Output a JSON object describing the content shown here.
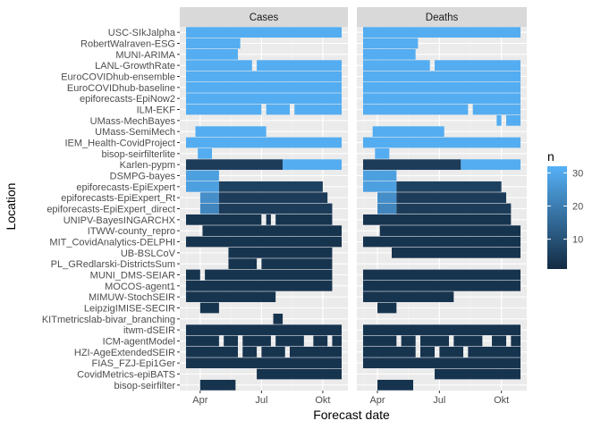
{
  "chart_data": {
    "type": "heatmap",
    "xlabel": "Forecast date",
    "ylabel": "Location",
    "x_ticks": [
      "Apr",
      "Jul",
      "Okt"
    ],
    "x_range_weeks": [
      -3,
      30
    ],
    "x_tick_weeks": [
      0,
      13,
      26
    ],
    "panels": [
      "Cases",
      "Deaths"
    ],
    "legend": {
      "title": "n",
      "ticks": [
        10,
        20,
        30
      ],
      "range": [
        1,
        32
      ],
      "low_color": "#132B43",
      "high_color": "#56B1F7",
      "position": "right"
    },
    "grid": true,
    "categories": [
      "USC-SIkJalpha",
      "RobertWalraven-ESG",
      "MUNI-ARIMA",
      "LANL-GrowthRate",
      "EuroCOVIDhub-ensemble",
      "EuroCOVIDhub-baseline",
      "epiforecasts-EpiNow2",
      "ILM-EKF",
      "UMass-MechBayes",
      "UMass-SemiMech",
      "IEM_Health-CovidProject",
      "bisop-seirfilterlite",
      "Karlen-pypm",
      "DSMPG-bayes",
      "epiforecasts-EpiExpert",
      "epiforecasts-EpiExpert_Rt",
      "epiforecasts-EpiExpert_direct",
      "UNIPV-BayesINGARCHX",
      "ITWW-county_repro",
      "MIT_CovidAnalytics-DELPHI",
      "UB-BSLCoV",
      "PL_GRedlarski-DistrictsSum",
      "MUNI_DMS-SEIAR",
      "MOCOS-agent1",
      "MIMUW-StochSEIR",
      "LeipzigIMISE-SECIR",
      "KITmetricslab-bivar_branching",
      "itwm-dSEIR",
      "ICM-agentModel",
      "HZI-AgeExtendedSEIR",
      "FIAS_FZJ-Epi1Ger",
      "CovidMetrics-epiBATS",
      "bisop-seirfilter"
    ],
    "rows": {
      "Cases": [
        {
          "start": -3,
          "end": 30,
          "n": 31,
          "gaps": []
        },
        {
          "start": -3,
          "end": 30,
          "n": 31,
          "gaps": [
            [
              8.5,
              30
            ]
          ]
        },
        {
          "start": -3,
          "end": 30,
          "n": 31,
          "gaps": [
            [
              8,
              30
            ]
          ]
        },
        {
          "start": -3,
          "end": 30,
          "n": 31,
          "gaps": [
            [
              11,
              12
            ]
          ]
        },
        {
          "start": -3,
          "end": 30,
          "n": 31,
          "gaps": []
        },
        {
          "start": -3,
          "end": 30,
          "n": 31,
          "gaps": []
        },
        {
          "start": -3,
          "end": 30,
          "n": 31,
          "gaps": []
        },
        {
          "start": -3,
          "end": 30,
          "n": 31,
          "gaps": [
            [
              13,
              14
            ],
            [
              19,
              20
            ]
          ]
        },
        {
          "start": -3,
          "end": 30,
          "n": 31,
          "gaps": [
            [
              -3,
              30
            ]
          ]
        },
        {
          "start": -1,
          "end": 14,
          "n": 31,
          "gaps": []
        },
        {
          "start": -3,
          "end": 30,
          "n": 31,
          "gaps": []
        },
        {
          "start": -0.5,
          "end": 2.5,
          "n": 31,
          "gaps": []
        },
        {
          "start": -3,
          "end": 30,
          "n": 5,
          "gaps": [],
          "tail": {
            "from": 17.5,
            "n": 31
          }
        },
        {
          "start": -3,
          "end": 4,
          "n": 28,
          "gaps": []
        },
        {
          "start": -3,
          "end": 26,
          "n": 6,
          "gaps": [],
          "lead": {
            "to": 4,
            "n": 28
          }
        },
        {
          "start": 0,
          "end": 27,
          "n": 5,
          "gaps": [],
          "lead": {
            "to": 4,
            "n": 24
          }
        },
        {
          "start": 0,
          "end": 28,
          "n": 5,
          "gaps": [],
          "lead": {
            "to": 4,
            "n": 22
          }
        },
        {
          "start": -3,
          "end": 28,
          "n": 3,
          "gaps": [
            [
              13,
              14
            ],
            [
              15,
              16
            ]
          ]
        },
        {
          "start": -3,
          "end": 30,
          "n": 3,
          "gaps": [
            [
              -3,
              0.5
            ]
          ]
        },
        {
          "start": -3,
          "end": 30,
          "n": 3,
          "gaps": []
        },
        {
          "start": -3,
          "end": 28,
          "n": 3,
          "gaps": [
            [
              -3,
              6
            ]
          ]
        },
        {
          "start": 6,
          "end": 28,
          "n": 3,
          "gaps": [
            [
              12,
              13
            ]
          ]
        },
        {
          "start": -3,
          "end": 28,
          "n": 3,
          "gaps": [
            [
              0,
              1
            ]
          ]
        },
        {
          "start": -3,
          "end": 28,
          "n": 3,
          "gaps": []
        },
        {
          "start": -3,
          "end": 30,
          "n": 3,
          "gaps": [
            [
              16,
              30
            ]
          ]
        },
        {
          "start": 0,
          "end": 4,
          "n": 3,
          "gaps": []
        },
        {
          "start": 15.5,
          "end": 17.5,
          "n": 3,
          "gaps": []
        },
        {
          "start": -3,
          "end": 30,
          "n": 3,
          "gaps": []
        },
        {
          "start": -3,
          "end": 30,
          "n": 3,
          "gaps": [
            [
              4,
              5
            ],
            [
              8,
              9
            ],
            [
              15,
              16
            ],
            [
              22,
              24
            ],
            [
              27,
              28
            ]
          ]
        },
        {
          "start": -3,
          "end": 30,
          "n": 3,
          "gaps": [
            [
              8,
              9
            ],
            [
              12,
              13
            ],
            [
              18,
              19
            ]
          ]
        },
        {
          "start": -3,
          "end": 30,
          "n": 3,
          "gaps": []
        },
        {
          "start": 12,
          "end": 30,
          "n": 3,
          "gaps": []
        },
        {
          "start": 0,
          "end": 7.5,
          "n": 3,
          "gaps": []
        }
      ],
      "Deaths": [
        {
          "start": -3,
          "end": 30,
          "n": 31,
          "gaps": []
        },
        {
          "start": -3,
          "end": 30,
          "n": 31,
          "gaps": [
            [
              8.5,
              30
            ]
          ]
        },
        {
          "start": -3,
          "end": 30,
          "n": 31,
          "gaps": [
            [
              8,
              30
            ]
          ]
        },
        {
          "start": -3,
          "end": 30,
          "n": 31,
          "gaps": [
            [
              11,
              12
            ]
          ]
        },
        {
          "start": -3,
          "end": 30,
          "n": 31,
          "gaps": []
        },
        {
          "start": -3,
          "end": 30,
          "n": 31,
          "gaps": []
        },
        {
          "start": -3,
          "end": 30,
          "n": 31,
          "gaps": []
        },
        {
          "start": -3,
          "end": 30,
          "n": 31,
          "gaps": [
            [
              19,
              20
            ]
          ]
        },
        {
          "start": -3,
          "end": 30,
          "n": 31,
          "gaps": [
            [
              -3,
              25
            ],
            [
              26,
              27
            ]
          ]
        },
        {
          "start": -1,
          "end": 14,
          "n": 31,
          "gaps": []
        },
        {
          "start": -3,
          "end": 30,
          "n": 31,
          "gaps": []
        },
        {
          "start": -0.5,
          "end": 2.5,
          "n": 31,
          "gaps": []
        },
        {
          "start": -3,
          "end": 30,
          "n": 5,
          "gaps": [],
          "tail": {
            "from": 17.5,
            "n": 31
          }
        },
        {
          "start": -3,
          "end": 4,
          "n": 28,
          "gaps": []
        },
        {
          "start": -3,
          "end": 26,
          "n": 6,
          "gaps": [],
          "lead": {
            "to": 4,
            "n": 28
          }
        },
        {
          "start": 0,
          "end": 27,
          "n": 5,
          "gaps": [],
          "lead": {
            "to": 4,
            "n": 24
          }
        },
        {
          "start": 0,
          "end": 28,
          "n": 5,
          "gaps": [],
          "lead": {
            "to": 4,
            "n": 22
          }
        },
        {
          "start": -3,
          "end": 28,
          "n": 3,
          "gaps": []
        },
        {
          "start": -3,
          "end": 30,
          "n": 3,
          "gaps": [
            [
              -3,
              0.5
            ]
          ]
        },
        {
          "start": -3,
          "end": 30,
          "n": 3,
          "gaps": []
        },
        {
          "start": 3,
          "end": 30,
          "n": 3,
          "gaps": []
        },
        {
          "start": -3,
          "end": 30,
          "n": 3,
          "gaps": [
            [
              -3,
              30
            ]
          ]
        },
        {
          "start": -3,
          "end": 30,
          "n": 3,
          "gaps": []
        },
        {
          "start": -3,
          "end": 30,
          "n": 3,
          "gaps": []
        },
        {
          "start": -3,
          "end": 30,
          "n": 3,
          "gaps": [
            [
              16,
              30
            ]
          ]
        },
        {
          "start": 0,
          "end": 4,
          "n": 3,
          "gaps": []
        },
        {
          "start": -3,
          "end": 30,
          "n": 3,
          "gaps": [
            [
              -3,
              30
            ]
          ]
        },
        {
          "start": -3,
          "end": 30,
          "n": 3,
          "gaps": []
        },
        {
          "start": -3,
          "end": 30,
          "n": 3,
          "gaps": [
            [
              4,
              5
            ],
            [
              8,
              9
            ],
            [
              15,
              16
            ],
            [
              22,
              24
            ],
            [
              27,
              28
            ]
          ]
        },
        {
          "start": -3,
          "end": 30,
          "n": 3,
          "gaps": [
            [
              8,
              9
            ],
            [
              12,
              13
            ],
            [
              18,
              19
            ]
          ]
        },
        {
          "start": -3,
          "end": 30,
          "n": 3,
          "gaps": []
        },
        {
          "start": 12,
          "end": 30,
          "n": 3,
          "gaps": []
        },
        {
          "start": 0,
          "end": 7.5,
          "n": 3,
          "gaps": []
        }
      ]
    }
  }
}
